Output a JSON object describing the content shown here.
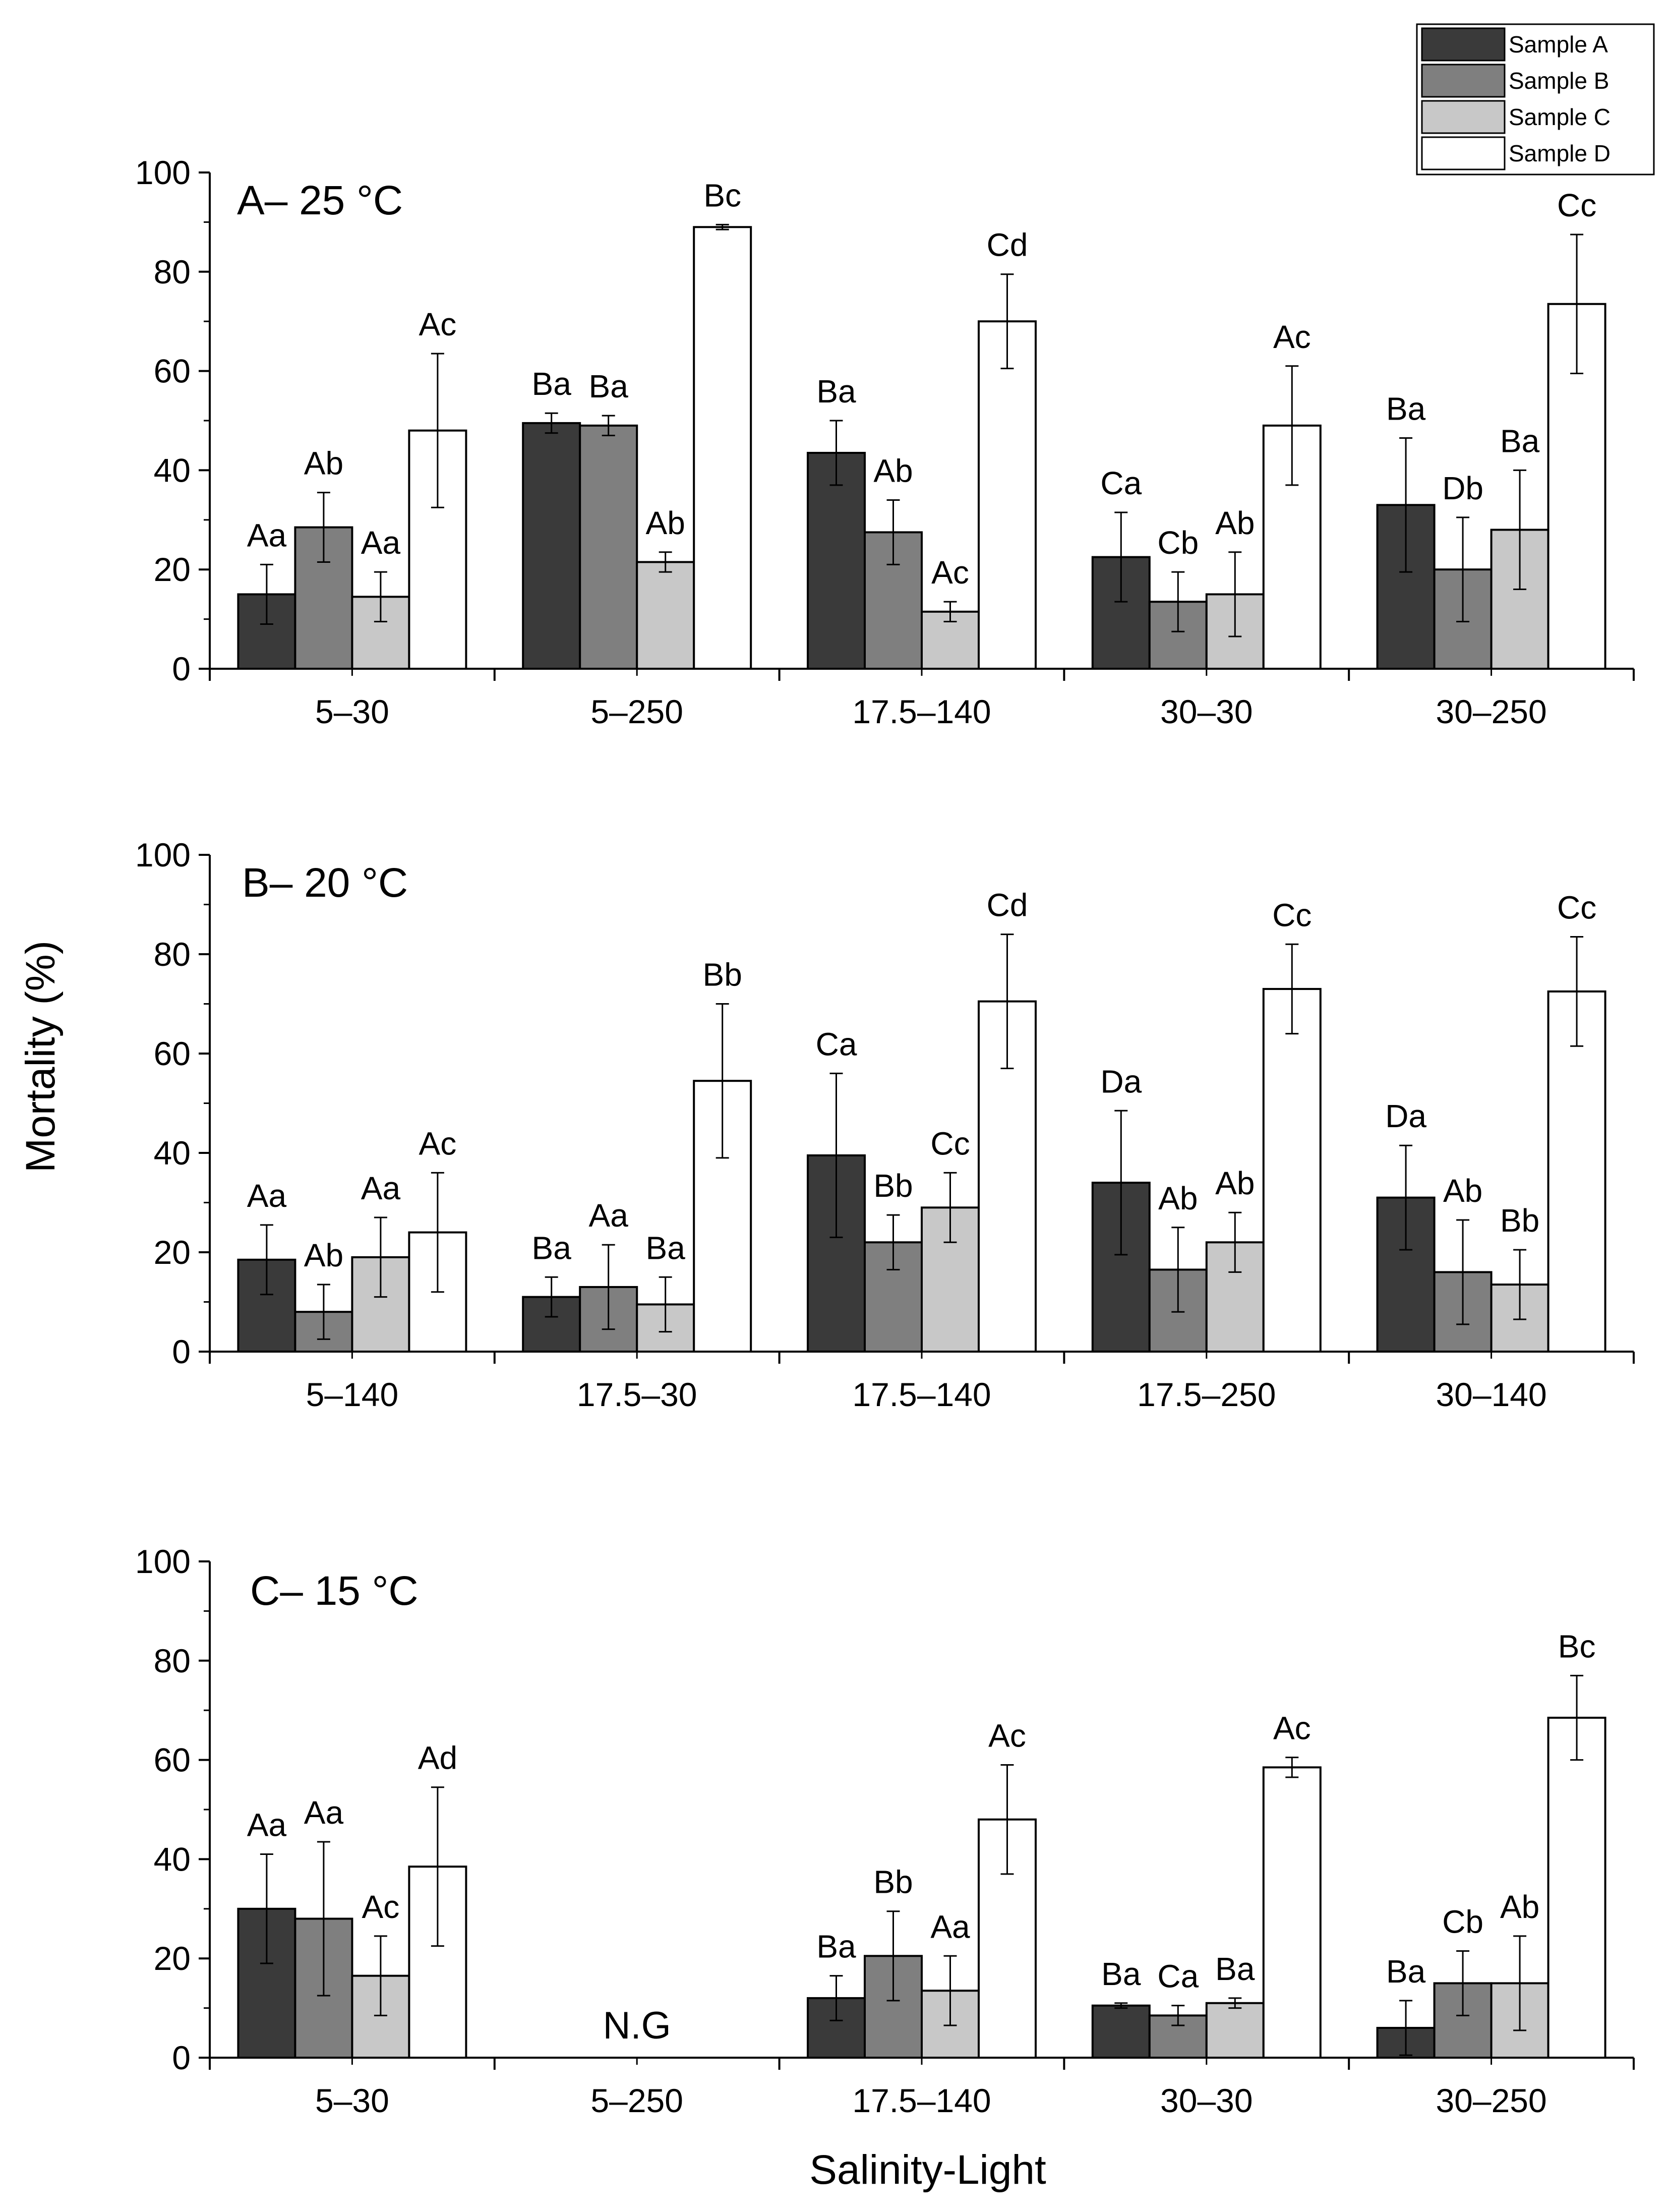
{
  "figure": {
    "ylabel": "Mortality (%)",
    "xlabel": "Salinity-Light",
    "legend": [
      {
        "name": "Sample A",
        "color": "#3a3a3a"
      },
      {
        "name": "Sample B",
        "color": "#7f7f7f"
      },
      {
        "name": "Sample C",
        "color": "#c8c8c8"
      },
      {
        "name": "Sample D",
        "color": "#ffffff"
      }
    ],
    "legend_position": "top-right"
  },
  "chart_data": [
    {
      "type": "bar",
      "title": "A– 25 °C",
      "ylim": [
        0,
        100
      ],
      "yticks": [
        "0",
        "20",
        "40",
        "60",
        "80",
        "100"
      ],
      "categories": [
        "5–30",
        "5–250",
        "17.5–140",
        "30–30",
        "30–250"
      ],
      "series": [
        {
          "name": "Sample A",
          "values": [
            15,
            49.5,
            43.5,
            22.5,
            33
          ],
          "errors": [
            6,
            2,
            6.5,
            9,
            13.5
          ],
          "labels": [
            "Aa",
            "Ba",
            "Ba",
            "Ca",
            "Ba"
          ]
        },
        {
          "name": "Sample B",
          "values": [
            28.5,
            49,
            27.5,
            13.5,
            20
          ],
          "errors": [
            7,
            2,
            6.5,
            6,
            10.5
          ],
          "labels": [
            "Ab",
            "Ba",
            "Ab",
            "Cb",
            "Db"
          ]
        },
        {
          "name": "Sample C",
          "values": [
            14.5,
            21.5,
            11.5,
            15,
            28
          ],
          "errors": [
            5,
            2,
            2,
            8.5,
            12
          ],
          "labels": [
            "Aa",
            "Ab",
            "Ac",
            "Ab",
            "Ba"
          ]
        },
        {
          "name": "Sample D",
          "values": [
            48,
            89,
            70,
            49,
            73.5
          ],
          "errors": [
            15.5,
            0.5,
            9.5,
            12,
            14
          ],
          "labels": [
            "Ac",
            "Bc",
            "Cd",
            "Ac",
            "Cc"
          ]
        }
      ]
    },
    {
      "type": "bar",
      "title": "B– 20 °C",
      "ylim": [
        0,
        100
      ],
      "yticks": [
        "0",
        "20",
        "40",
        "60",
        "80",
        "100"
      ],
      "categories": [
        "5–140",
        "17.5–30",
        "17.5–140",
        "17.5–250",
        "30–140"
      ],
      "series": [
        {
          "name": "Sample A",
          "values": [
            18.5,
            11,
            39.5,
            34,
            31
          ],
          "errors": [
            7,
            4,
            16.5,
            14.5,
            10.5
          ],
          "labels": [
            "Aa",
            "Ba",
            "Ca",
            "Da",
            "Da"
          ]
        },
        {
          "name": "Sample B",
          "values": [
            8,
            13,
            22,
            16.5,
            16
          ],
          "errors": [
            5.5,
            8.5,
            5.5,
            8.5,
            10.5
          ],
          "labels": [
            "Ab",
            "Aa",
            "Bb",
            "Ab",
            "Ab"
          ]
        },
        {
          "name": "Sample C",
          "values": [
            19,
            9.5,
            29,
            22,
            13.5
          ],
          "errors": [
            8,
            5.5,
            7,
            6,
            7
          ],
          "labels": [
            "Aa",
            "Ba",
            "Cc",
            "Ab",
            "Bb"
          ]
        },
        {
          "name": "Sample D",
          "values": [
            24,
            54.5,
            70.5,
            73,
            72.5
          ],
          "errors": [
            12,
            15.5,
            13.5,
            9,
            11
          ],
          "labels": [
            "Ac",
            "Bb",
            "Cd",
            "Cc",
            "Cc"
          ]
        }
      ]
    },
    {
      "type": "bar",
      "title": "C– 15 °C",
      "ylim": [
        0,
        100
      ],
      "yticks": [
        "0",
        "20",
        "40",
        "60",
        "80",
        "100"
      ],
      "categories": [
        "5–30",
        "5–250",
        "17.5–140",
        "30–30",
        "30–250"
      ],
      "annotation": {
        "category": "5–250",
        "text": "N.G"
      },
      "series": [
        {
          "name": "Sample A",
          "values": [
            30,
            null,
            12,
            10.5,
            6
          ],
          "errors": [
            11,
            null,
            4.5,
            0.5,
            5.5
          ],
          "labels": [
            "Aa",
            "",
            "Ba",
            "Ba",
            "Ba"
          ]
        },
        {
          "name": "Sample B",
          "values": [
            28,
            null,
            20.5,
            8.5,
            15
          ],
          "errors": [
            15.5,
            null,
            9,
            2,
            6.5
          ],
          "labels": [
            "Aa",
            "",
            "Bb",
            "Ca",
            "Cb"
          ]
        },
        {
          "name": "Sample C",
          "values": [
            16.5,
            null,
            13.5,
            11,
            15
          ],
          "errors": [
            8,
            null,
            7,
            1,
            9.5
          ],
          "labels": [
            "Ac",
            "",
            "Aa",
            "Ba",
            "Ab"
          ]
        },
        {
          "name": "Sample D",
          "values": [
            38.5,
            null,
            48,
            58.5,
            68.5
          ],
          "errors": [
            16,
            null,
            11,
            2,
            8.5
          ],
          "labels": [
            "Ad",
            "",
            "Ac",
            "Ac",
            "Bc"
          ]
        }
      ]
    }
  ]
}
